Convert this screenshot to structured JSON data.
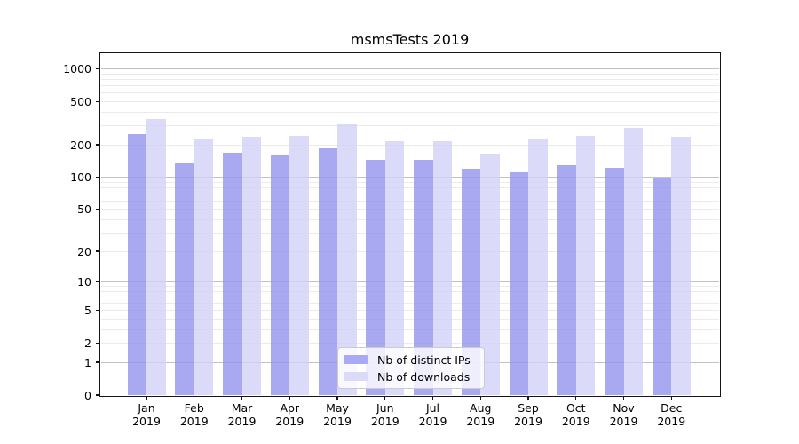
{
  "chart_data": {
    "type": "bar",
    "title": "msmsTests 2019",
    "x_year": "2019",
    "categories": [
      "Jan",
      "Feb",
      "Mar",
      "Apr",
      "May",
      "Jun",
      "Jul",
      "Aug",
      "Sep",
      "Oct",
      "Nov",
      "Dec"
    ],
    "series": [
      {
        "name": "Nb of distinct IPs",
        "fill": "rgba(148,148,238,0.8)",
        "legend_color": "#a9a9f4",
        "values": [
          250,
          137,
          170,
          160,
          185,
          144,
          146,
          120,
          112,
          130,
          123,
          100
        ]
      },
      {
        "name": "Nb of downloads",
        "fill": "rgba(210,210,247,0.8)",
        "legend_color": "#dbdbf7",
        "values": [
          346,
          230,
          236,
          244,
          310,
          215,
          217,
          166,
          224,
          242,
          286,
          236
        ]
      }
    ],
    "yscale": "log1p",
    "ylim": [
      0,
      1370
    ],
    "yticks": [
      0,
      1,
      2,
      5,
      10,
      20,
      50,
      100,
      200,
      500,
      1000
    ],
    "grid": {
      "major": [
        1,
        10,
        100,
        1000
      ],
      "minor": [
        2,
        3,
        4,
        5,
        6,
        7,
        8,
        9,
        20,
        30,
        40,
        50,
        60,
        70,
        80,
        90,
        200,
        300,
        400,
        500,
        600,
        700,
        800,
        900
      ],
      "major_color": "#c2c2c2",
      "minor_color": "#ebebeb"
    },
    "legend": {
      "position": "lower center",
      "entries": [
        "Nb of distinct IPs",
        "Nb of downloads"
      ]
    },
    "xlabel": "",
    "ylabel": ""
  }
}
